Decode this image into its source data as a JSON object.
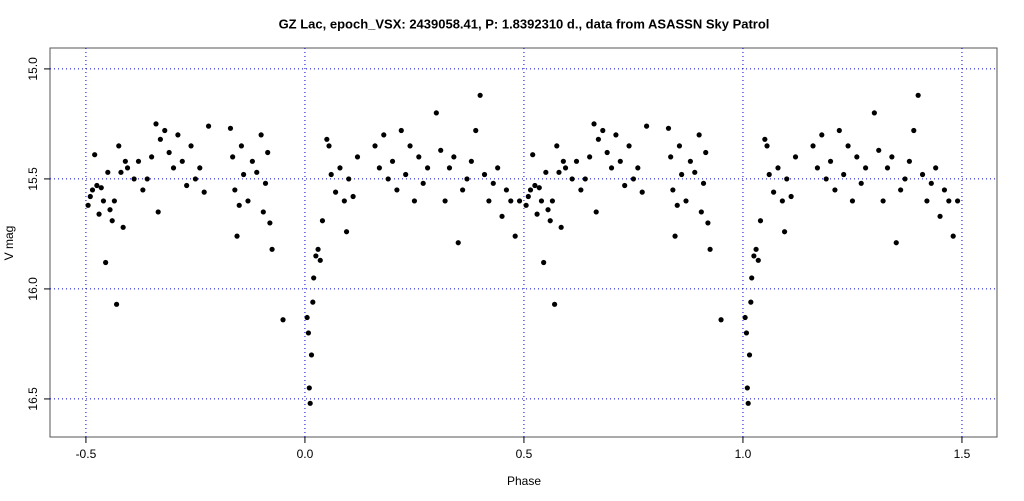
{
  "chart_data": {
    "type": "scatter",
    "title": "GZ Lac, epoch_VSX: 2439058.41, P: 1.8392310 d., data from ASASSN Sky Patrol",
    "xlabel": "Phase",
    "ylabel": "V mag",
    "color": "#000000",
    "grid": true,
    "y_inverted": true,
    "xlim": [
      -0.582,
      1.58
    ],
    "ylim": [
      14.905,
      16.673
    ],
    "xticks": [
      -0.5,
      {
        "value": 0,
        "label": "0.0"
      },
      0.5,
      {
        "value": 1,
        "label": "1.0"
      },
      1.5
    ],
    "yticks": [
      {
        "value": 15,
        "label": "15.0"
      },
      15.5,
      {
        "value": 16,
        "label": "16.0"
      },
      16.5
    ],
    "x": [
      -0.495,
      -0.49,
      -0.485,
      -0.48,
      -0.475,
      -0.47,
      -0.465,
      -0.46,
      -0.455,
      -0.45,
      -0.445,
      -0.44,
      -0.435,
      -0.43,
      -0.425,
      -0.42,
      -0.415,
      -0.41,
      -0.405,
      -0.39,
      -0.38,
      -0.37,
      -0.36,
      -0.35,
      -0.34,
      -0.335,
      -0.33,
      -0.32,
      -0.31,
      -0.3,
      -0.29,
      -0.28,
      -0.27,
      -0.26,
      -0.25,
      -0.24,
      -0.23,
      -0.22,
      -0.17,
      -0.165,
      -0.16,
      -0.155,
      -0.15,
      -0.145,
      -0.14,
      -0.13,
      -0.12,
      -0.11,
      -0.1,
      -0.095,
      -0.09,
      -0.085,
      -0.08,
      -0.075,
      -0.05,
      0.005,
      0.008,
      0.01,
      0.012,
      0.015,
      0.018,
      0.02,
      0.025,
      0.03,
      0.035,
      0.04,
      0.05,
      0.055,
      0.06,
      0.07,
      0.08,
      0.09,
      0.095,
      0.1,
      0.11,
      0.12,
      0.16,
      0.17,
      0.18,
      0.19,
      0.2,
      0.21,
      0.22,
      0.23,
      0.24,
      0.25,
      0.26,
      0.27,
      0.28,
      0.3,
      0.31,
      0.32,
      0.33,
      0.34,
      0.35,
      0.36,
      0.37,
      0.38,
      0.39,
      0.4,
      0.41,
      0.42,
      0.43,
      0.44,
      0.45,
      0.46,
      0.47,
      0.48,
      0.49,
      0.505,
      0.51,
      0.515,
      0.52,
      0.525,
      0.53,
      0.535,
      0.54,
      0.545,
      0.55,
      0.555,
      0.56,
      0.565,
      0.57,
      0.575,
      0.58,
      0.585,
      0.59,
      0.595,
      0.61,
      0.62,
      0.63,
      0.64,
      0.65,
      0.66,
      0.665,
      0.67,
      0.68,
      0.69,
      0.7,
      0.71,
      0.72,
      0.73,
      0.74,
      0.75,
      0.76,
      0.77,
      0.78,
      0.83,
      0.835,
      0.84,
      0.845,
      0.85,
      0.855,
      0.86,
      0.87,
      0.88,
      0.89,
      0.9,
      0.905,
      0.91,
      0.915,
      0.92,
      0.925,
      0.95,
      1.005,
      1.008,
      1.01,
      1.012,
      1.015,
      1.018,
      1.02,
      1.025,
      1.03,
      1.035,
      1.04,
      1.05,
      1.055,
      1.06,
      1.07,
      1.08,
      1.09,
      1.095,
      1.1,
      1.11,
      1.12,
      1.16,
      1.17,
      1.18,
      1.19,
      1.2,
      1.21,
      1.22,
      1.23,
      1.24,
      1.25,
      1.26,
      1.27,
      1.28,
      1.3,
      1.31,
      1.32,
      1.33,
      1.34,
      1.35,
      1.36,
      1.37,
      1.38,
      1.39,
      1.4,
      1.41,
      1.42,
      1.43,
      1.44,
      1.45,
      1.46,
      1.47,
      1.48,
      1.49
    ],
    "values": [
      15.62,
      15.58,
      15.55,
      15.39,
      15.53,
      15.66,
      15.54,
      15.6,
      15.88,
      15.47,
      15.64,
      15.69,
      15.6,
      16.07,
      15.35,
      15.47,
      15.72,
      15.42,
      15.45,
      15.5,
      15.42,
      15.55,
      15.5,
      15.4,
      15.25,
      15.65,
      15.32,
      15.28,
      15.38,
      15.45,
      15.3,
      15.42,
      15.53,
      15.35,
      15.5,
      15.45,
      15.56,
      15.26,
      15.27,
      15.4,
      15.55,
      15.76,
      15.62,
      15.35,
      15.48,
      15.6,
      15.42,
      15.47,
      15.3,
      15.65,
      15.52,
      15.38,
      15.7,
      15.82,
      16.14,
      16.13,
      16.2,
      16.45,
      16.52,
      16.3,
      16.06,
      15.95,
      15.85,
      15.82,
      15.87,
      15.69,
      15.32,
      15.35,
      15.48,
      15.56,
      15.45,
      15.6,
      15.74,
      15.5,
      15.58,
      15.4,
      15.35,
      15.45,
      15.3,
      15.5,
      15.42,
      15.55,
      15.28,
      15.48,
      15.35,
      15.6,
      15.4,
      15.52,
      15.45,
      15.2,
      15.37,
      15.6,
      15.45,
      15.4,
      15.79,
      15.55,
      15.5,
      15.42,
      15.28,
      15.12,
      15.48,
      15.6,
      15.52,
      15.45,
      15.67,
      15.55,
      15.6,
      15.76,
      15.6,
      15.62,
      15.58,
      15.55,
      15.39,
      15.53,
      15.66,
      15.54,
      15.6,
      15.88,
      15.47,
      15.64,
      15.69,
      15.6,
      16.07,
      15.35,
      15.47,
      15.72,
      15.42,
      15.45,
      15.5,
      15.42,
      15.55,
      15.5,
      15.4,
      15.25,
      15.65,
      15.32,
      15.28,
      15.38,
      15.45,
      15.3,
      15.42,
      15.53,
      15.35,
      15.5,
      15.45,
      15.56,
      15.26,
      15.27,
      15.4,
      15.55,
      15.76,
      15.62,
      15.35,
      15.48,
      15.6,
      15.42,
      15.47,
      15.3,
      15.65,
      15.52,
      15.38,
      15.7,
      15.82,
      16.14,
      16.13,
      16.2,
      16.45,
      16.52,
      16.3,
      16.06,
      15.95,
      15.85,
      15.82,
      15.87,
      15.69,
      15.32,
      15.35,
      15.48,
      15.56,
      15.45,
      15.6,
      15.74,
      15.5,
      15.58,
      15.4,
      15.35,
      15.45,
      15.3,
      15.5,
      15.42,
      15.55,
      15.28,
      15.48,
      15.35,
      15.6,
      15.4,
      15.52,
      15.45,
      15.2,
      15.37,
      15.6,
      15.45,
      15.4,
      15.79,
      15.55,
      15.5,
      15.42,
      15.28,
      15.12,
      15.48,
      15.6,
      15.52,
      15.45,
      15.67,
      15.55,
      15.6,
      15.76,
      15.6
    ]
  }
}
